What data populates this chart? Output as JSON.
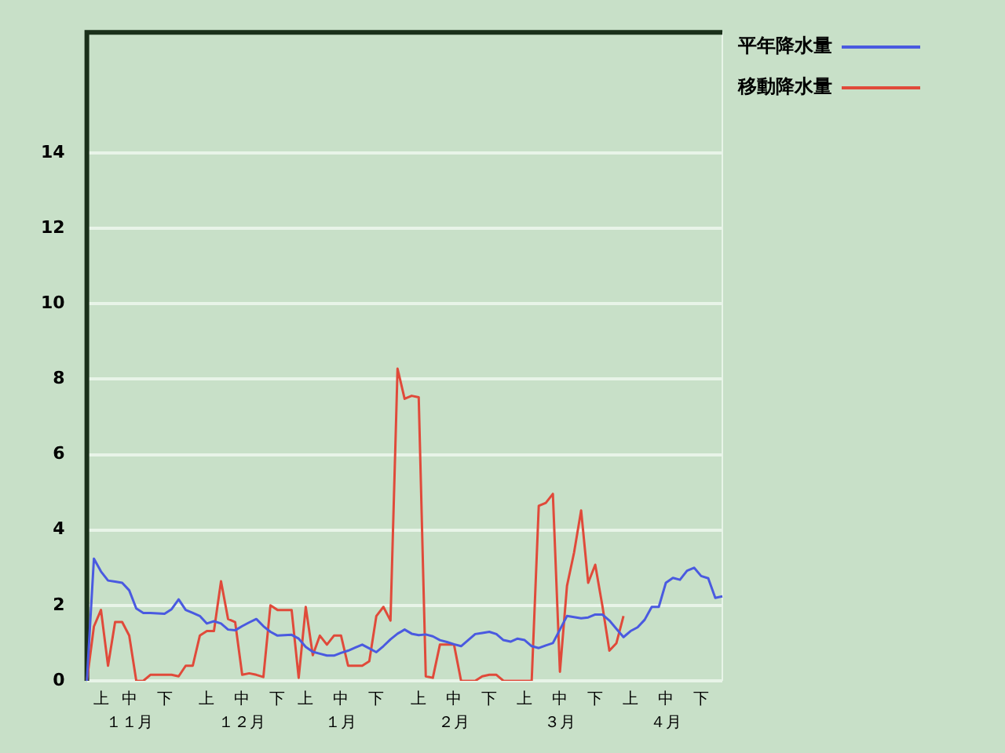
{
  "chart_data": {
    "type": "line",
    "categories": [
      null,
      null,
      "上",
      null,
      null,
      null,
      "中",
      null,
      null,
      null,
      null,
      "下",
      null,
      null,
      null,
      null,
      null,
      "上",
      null,
      null,
      null,
      null,
      "中",
      null,
      null,
      null,
      null,
      "下",
      null,
      null,
      null,
      "上",
      null,
      null,
      null,
      null,
      "中",
      null,
      null,
      null,
      null,
      "下",
      null,
      null,
      null,
      null,
      null,
      "上",
      null,
      null,
      null,
      null,
      "中",
      null,
      null,
      null,
      null,
      "下",
      null,
      null,
      null,
      null,
      "上",
      null,
      null,
      null,
      null,
      "中",
      null,
      null,
      null,
      null,
      "下",
      null,
      null,
      null,
      null,
      "上",
      null,
      null,
      null,
      null,
      "中",
      null,
      null,
      null,
      null,
      "下",
      null,
      null,
      null
    ],
    "annotations": [
      "１１月",
      "１２月",
      "１月",
      "２月",
      "３月",
      "４月"
    ],
    "ylim": [
      0,
      17.2
    ],
    "yticks": [
      0,
      2,
      4,
      6,
      8,
      10,
      12,
      14
    ],
    "grid": "y",
    "legend": "top right",
    "marker": "none",
    "line_style": "solid",
    "series": [
      {
        "name": "平年降水量",
        "color": "#4a5ae0",
        "values": [
          0,
          3.24,
          2.9,
          2.66,
          2.63,
          2.6,
          2.4,
          1.92,
          1.8,
          1.8,
          1.79,
          1.78,
          1.9,
          2.16,
          1.88,
          1.8,
          1.72,
          1.52,
          1.58,
          1.52,
          1.36,
          1.34,
          1.45,
          1.55,
          1.64,
          1.45,
          1.3,
          1.2,
          1.21,
          1.22,
          1.12,
          0.9,
          0.77,
          0.72,
          0.67,
          0.67,
          0.74,
          0.8,
          0.88,
          0.96,
          0.86,
          0.76,
          0.92,
          1.1,
          1.25,
          1.36,
          1.25,
          1.21,
          1.23,
          1.18,
          1.08,
          1.03,
          0.97,
          0.92,
          1.08,
          1.24,
          1.27,
          1.3,
          1.24,
          1.08,
          1.04,
          1.12,
          1.08,
          0.92,
          0.87,
          0.94,
          1.0,
          1.36,
          1.72,
          1.69,
          1.66,
          1.68,
          1.76,
          1.76,
          1.6,
          1.38,
          1.16,
          1.32,
          1.42,
          1.62,
          1.96,
          1.96,
          2.6,
          2.73,
          2.68,
          2.92,
          3.0,
          2.78,
          2.72,
          2.2,
          2.24
        ]
      },
      {
        "name": "移動降水量",
        "color": "#e04a3a",
        "values": [
          0,
          1.44,
          1.88,
          0.4,
          1.56,
          1.56,
          1.2,
          0,
          0,
          0.16,
          0.16,
          0.16,
          0.16,
          0.12,
          0.4,
          0.4,
          1.2,
          1.32,
          1.32,
          2.64,
          1.64,
          1.56,
          0.16,
          0.2,
          0.16,
          0.1,
          2.0,
          1.88,
          1.88,
          1.88,
          0.08,
          1.96,
          0.68,
          1.2,
          0.96,
          1.2,
          1.2,
          0.4,
          0.4,
          0.4,
          0.52,
          1.72,
          1.96,
          1.6,
          8.28,
          7.48,
          7.56,
          7.52,
          0.12,
          0.08,
          0.96,
          0.96,
          0.96,
          0,
          0,
          0,
          0.12,
          0.16,
          0.16,
          0,
          0,
          0,
          0,
          0,
          4.64,
          4.72,
          4.96,
          0.24,
          2.52,
          3.4,
          4.52,
          2.6,
          3.08,
          2.0,
          0.8,
          1.0,
          1.72,
          null,
          null,
          null,
          null,
          null,
          null,
          null,
          null,
          null,
          null,
          null,
          null,
          null,
          null
        ]
      }
    ]
  }
}
